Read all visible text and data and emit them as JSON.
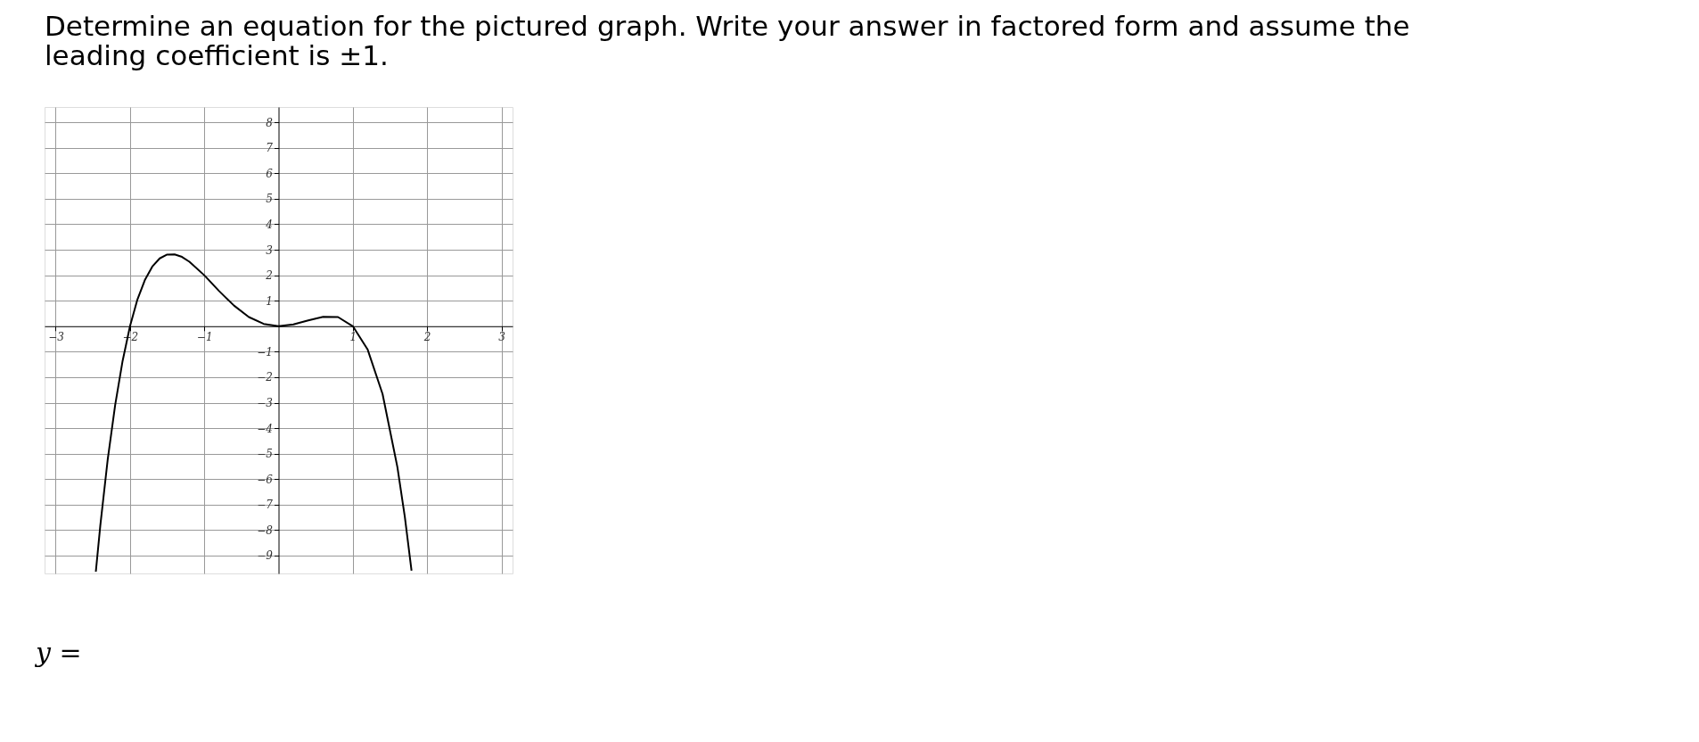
{
  "chart_data": {
    "type": "line",
    "title": "Determine an equation for the pictured graph. Write your answer in factored form and assume the leading coefficient is ±1.",
    "annotations": [
      "y ="
    ],
    "x": [
      -2.46,
      -2.4,
      -2.3,
      -2.2,
      -2.1,
      -2.0,
      -1.9,
      -1.8,
      -1.7,
      -1.6,
      -1.5,
      -1.4,
      -1.3,
      -1.2,
      -1.0,
      -0.8,
      -0.6,
      -0.4,
      -0.2,
      0,
      0.2,
      0.4,
      0.6,
      0.8,
      1.0,
      1.2,
      1.4,
      1.6,
      1.7,
      1.79
    ],
    "series": [
      {
        "color": "#000000",
        "values": [
          -9.63,
          -7.83,
          -5.23,
          -3.1,
          -1.37,
          0,
          1.05,
          1.81,
          2.34,
          2.66,
          2.81,
          2.82,
          2.72,
          2.53,
          2,
          1.38,
          0.81,
          0.36,
          0.09,
          0,
          0.07,
          0.23,
          0.37,
          0.36,
          0,
          -0.92,
          -2.66,
          -5.53,
          -7.48,
          -9.59
        ]
      }
    ],
    "xlim": [
      -3.15,
      3.15
    ],
    "ylim": [
      -9.7,
      8.6
    ],
    "xticks": [
      -3,
      -2,
      -1,
      1,
      2,
      3
    ],
    "yticks": [
      -9,
      -8,
      -7,
      -6,
      -5,
      -4,
      -3,
      -2,
      -1,
      1,
      2,
      3,
      4,
      5,
      6,
      7,
      8
    ],
    "grid": true,
    "marker": "none",
    "line_style": "solid"
  }
}
